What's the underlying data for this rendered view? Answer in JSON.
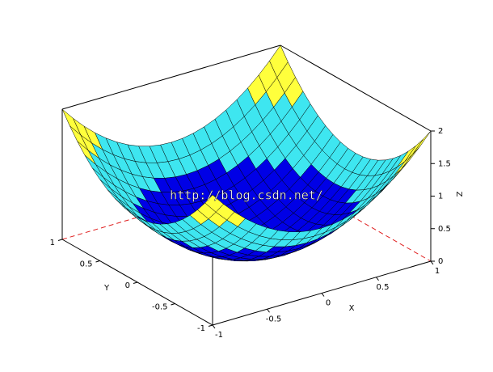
{
  "chart_data": {
    "type": "surface",
    "x_label": "X",
    "y_label": "Y",
    "z_label": "Z",
    "watermark": "http://blog.csdn.net/",
    "x": [
      -1,
      -0.9,
      -0.8,
      -0.7,
      -0.6,
      -0.5,
      -0.4,
      -0.3,
      -0.2,
      -0.1,
      0,
      0.1,
      0.2,
      0.3,
      0.4,
      0.5,
      0.6,
      0.7,
      0.8,
      0.9,
      1
    ],
    "y": [
      -1,
      -0.9,
      -0.8,
      -0.7,
      -0.6,
      -0.5,
      -0.4,
      -0.3,
      -0.2,
      -0.1,
      0,
      0.1,
      0.2,
      0.3,
      0.4,
      0.5,
      0.6,
      0.7,
      0.8,
      0.9,
      1
    ],
    "z": [
      [
        2,
        1.81,
        1.64,
        1.49,
        1.36,
        1.25,
        1.16,
        1.09,
        1.04,
        1.01,
        1,
        1.01,
        1.04,
        1.09,
        1.16,
        1.25,
        1.36,
        1.49,
        1.64,
        1.81,
        2
      ],
      [
        1.81,
        1.62,
        1.45,
        1.3,
        1.17,
        1.06,
        0.97,
        0.9,
        0.85,
        0.82,
        0.81,
        0.82,
        0.85,
        0.9,
        0.97,
        1.06,
        1.17,
        1.3,
        1.45,
        1.62,
        1.81
      ],
      [
        1.64,
        1.45,
        1.28,
        1.13,
        1,
        0.89,
        0.8,
        0.73,
        0.68,
        0.65,
        0.64,
        0.65,
        0.68,
        0.73,
        0.8,
        0.89,
        1,
        1.13,
        1.28,
        1.45,
        1.64
      ],
      [
        1.49,
        1.3,
        1.13,
        0.98,
        0.85,
        0.74,
        0.65,
        0.58,
        0.53,
        0.5,
        0.49,
        0.5,
        0.53,
        0.58,
        0.65,
        0.74,
        0.85,
        0.98,
        1.13,
        1.3,
        1.49
      ],
      [
        1.36,
        1.17,
        1,
        0.85,
        0.72,
        0.61,
        0.52,
        0.45,
        0.4,
        0.37,
        0.36,
        0.37,
        0.4,
        0.45,
        0.52,
        0.61,
        0.72,
        0.85,
        1,
        1.17,
        1.36
      ],
      [
        1.25,
        1.06,
        0.89,
        0.74,
        0.61,
        0.5,
        0.41,
        0.34,
        0.29,
        0.26,
        0.25,
        0.26,
        0.29,
        0.34,
        0.41,
        0.5,
        0.61,
        0.74,
        0.89,
        1.06,
        1.25
      ],
      [
        1.16,
        0.97,
        0.8,
        0.65,
        0.52,
        0.41,
        0.32,
        0.25,
        0.2,
        0.17,
        0.16,
        0.17,
        0.2,
        0.25,
        0.32,
        0.41,
        0.52,
        0.65,
        0.8,
        0.97,
        1.16
      ],
      [
        1.09,
        0.9,
        0.73,
        0.58,
        0.45,
        0.34,
        0.25,
        0.18,
        0.13,
        0.1,
        0.09,
        0.1,
        0.13,
        0.18,
        0.25,
        0.34,
        0.45,
        0.58,
        0.73,
        0.9,
        1.09
      ],
      [
        1.04,
        0.85,
        0.68,
        0.53,
        0.4,
        0.29,
        0.2,
        0.13,
        0.08,
        0.05,
        0.04,
        0.05,
        0.08,
        0.13,
        0.2,
        0.29,
        0.4,
        0.53,
        0.68,
        0.85,
        1.04
      ],
      [
        1.01,
        0.82,
        0.65,
        0.5,
        0.37,
        0.26,
        0.17,
        0.1,
        0.05,
        0.02,
        0.01,
        0.02,
        0.05,
        0.1,
        0.17,
        0.26,
        0.37,
        0.5,
        0.65,
        0.82,
        1.01
      ],
      [
        1,
        0.81,
        0.64,
        0.49,
        0.36,
        0.25,
        0.16,
        0.09,
        0.04,
        0.01,
        0,
        0.01,
        0.04,
        0.09,
        0.16,
        0.25,
        0.36,
        0.49,
        0.64,
        0.81,
        1
      ],
      [
        1.01,
        0.82,
        0.65,
        0.5,
        0.37,
        0.26,
        0.17,
        0.1,
        0.05,
        0.02,
        0.01,
        0.02,
        0.05,
        0.1,
        0.17,
        0.26,
        0.37,
        0.5,
        0.65,
        0.82,
        1.01
      ],
      [
        1.04,
        0.85,
        0.68,
        0.53,
        0.4,
        0.29,
        0.2,
        0.13,
        0.08,
        0.05,
        0.04,
        0.05,
        0.08,
        0.13,
        0.2,
        0.29,
        0.4,
        0.53,
        0.68,
        0.85,
        1.04
      ],
      [
        1.09,
        0.9,
        0.73,
        0.58,
        0.45,
        0.34,
        0.25,
        0.18,
        0.13,
        0.1,
        0.09,
        0.1,
        0.13,
        0.18,
        0.25,
        0.34,
        0.45,
        0.58,
        0.73,
        0.9,
        1.09
      ],
      [
        1.16,
        0.97,
        0.8,
        0.65,
        0.52,
        0.41,
        0.32,
        0.25,
        0.2,
        0.17,
        0.16,
        0.17,
        0.2,
        0.25,
        0.32,
        0.41,
        0.52,
        0.65,
        0.8,
        0.97,
        1.16
      ],
      [
        1.25,
        1.06,
        0.89,
        0.74,
        0.61,
        0.5,
        0.41,
        0.34,
        0.29,
        0.26,
        0.25,
        0.26,
        0.29,
        0.34,
        0.41,
        0.5,
        0.61,
        0.74,
        0.89,
        1.06,
        1.25
      ],
      [
        1.36,
        1.17,
        1,
        0.85,
        0.72,
        0.61,
        0.52,
        0.45,
        0.4,
        0.37,
        0.36,
        0.37,
        0.4,
        0.45,
        0.52,
        0.61,
        0.72,
        0.85,
        1,
        1.17,
        1.36
      ],
      [
        1.49,
        1.3,
        1.13,
        0.98,
        0.85,
        0.74,
        0.65,
        0.58,
        0.53,
        0.5,
        0.49,
        0.5,
        0.53,
        0.58,
        0.65,
        0.74,
        0.85,
        0.98,
        1.13,
        1.3,
        1.49
      ],
      [
        1.64,
        1.45,
        1.28,
        1.13,
        1,
        0.89,
        0.8,
        0.73,
        0.68,
        0.65,
        0.64,
        0.65,
        0.68,
        0.73,
        0.8,
        0.89,
        1,
        1.13,
        1.28,
        1.45,
        1.64
      ],
      [
        1.81,
        1.62,
        1.45,
        1.3,
        1.17,
        1.06,
        0.97,
        0.9,
        0.85,
        0.82,
        0.81,
        0.82,
        0.85,
        0.9,
        0.97,
        1.06,
        1.17,
        1.3,
        1.45,
        1.62,
        1.81
      ],
      [
        2,
        1.81,
        1.64,
        1.49,
        1.36,
        1.25,
        1.16,
        1.09,
        1.04,
        1.01,
        1,
        1.01,
        1.04,
        1.09,
        1.16,
        1.25,
        1.36,
        1.49,
        1.64,
        1.81,
        2
      ]
    ],
    "xlim": [
      -1,
      1
    ],
    "ylim": [
      -1,
      1
    ],
    "zlim": [
      0,
      2
    ],
    "xticks": [
      -1,
      -0.5,
      0,
      0.5,
      1
    ],
    "yticks": [
      -1,
      -0.5,
      0,
      0.5,
      1
    ],
    "zticks": [
      0,
      0.5,
      1,
      1.5,
      2
    ],
    "colors": [
      "#0000e6",
      "#3ee6f0",
      "#ffff3c"
    ],
    "edge_color": "#000000",
    "hidden_edge_color": "#e02020"
  }
}
